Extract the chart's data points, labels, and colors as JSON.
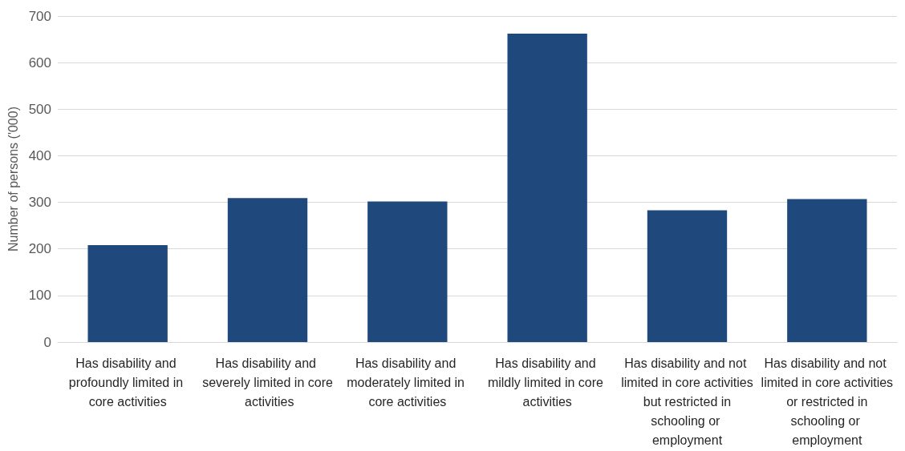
{
  "chart_data": {
    "type": "bar",
    "ylabel": "Number of persons ('000)",
    "categories": [
      "Has disability and profoundly limited in core activities",
      "Has disability and severely limited in core activities",
      "Has disability and moderately limited in core activities",
      "Has disability and mildly limited in core activities",
      "Has disability and not limited in core activities but restricted in schooling or employment",
      "Has disability and not limited in core activities or restricted in schooling or employment"
    ],
    "values": [
      208,
      309,
      302,
      662,
      283,
      307
    ],
    "color": "#1f497d",
    "ylim": [
      0,
      700
    ],
    "yticks": [
      0,
      100,
      200,
      300,
      400,
      500,
      600,
      700
    ],
    "grid": "y"
  }
}
